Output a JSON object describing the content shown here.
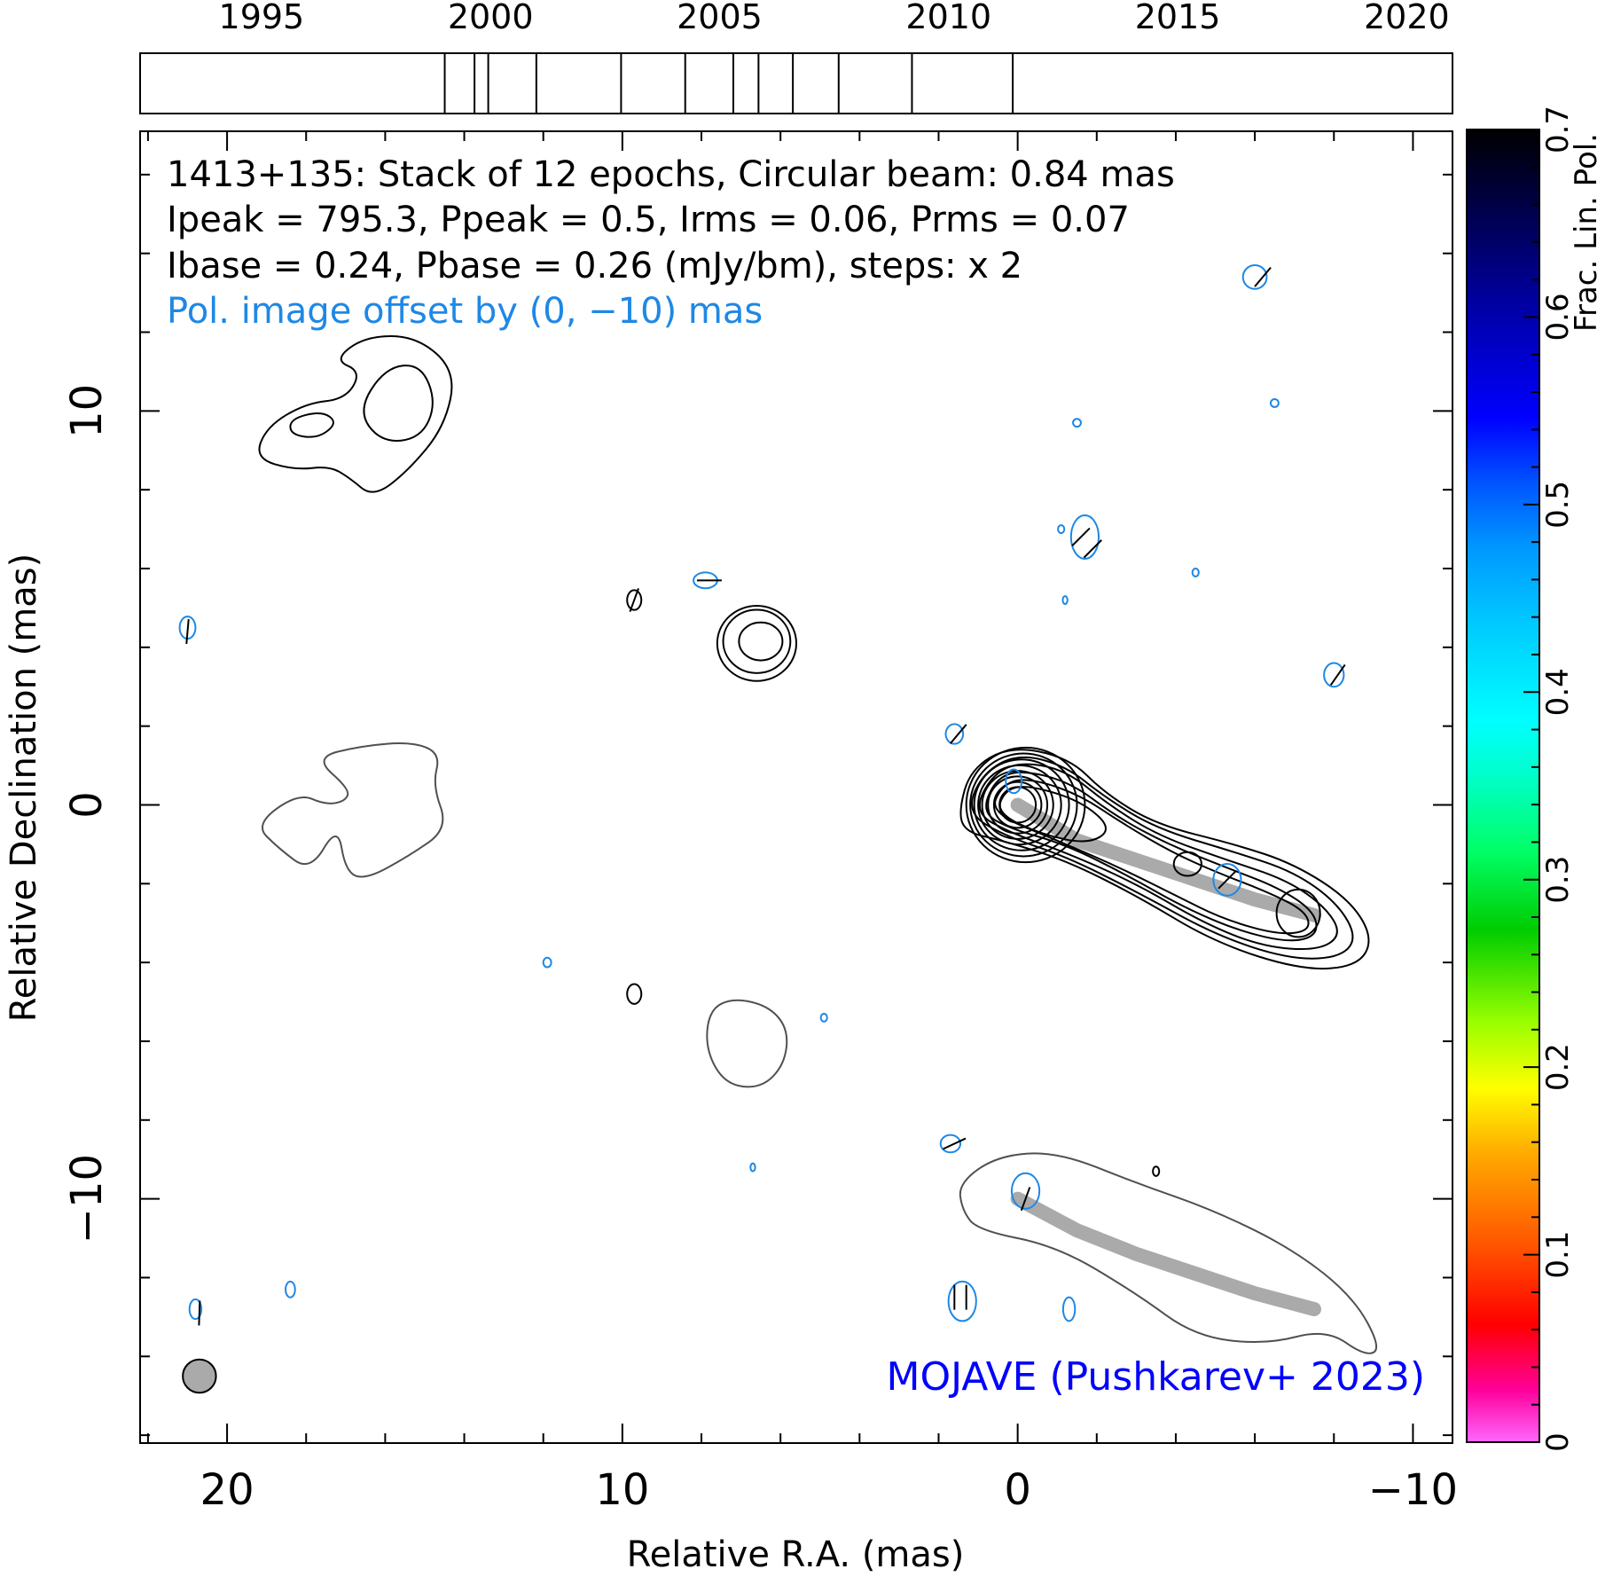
{
  "chart_data": {
    "type": "contour",
    "timeline": {
      "years": [
        1995,
        2000,
        2005,
        2010,
        2015,
        2020
      ],
      "epochs": [
        1999.0,
        1999.65,
        1999.95,
        2001.0,
        2002.85,
        2004.25,
        2005.3,
        2005.85,
        2006.6,
        2007.6,
        2009.2,
        2011.4
      ]
    },
    "info_lines": [
      "1413+135: Stack of 12 epochs, Circular beam: 0.84 mas",
      "Ipeak = 795.3, Ppeak = 0.5, Irms = 0.06, Prms = 0.07",
      "Ibase = 0.24, Pbase = 0.26 (mJy/bm), steps: x 2"
    ],
    "offset_note": "Pol. image offset by (0, −10) mas",
    "credit": "MOJAVE (Pushkarev+ 2023)",
    "xlabel": "Relative R.A. (mas)",
    "ylabel": "Relative Declination (mas)",
    "xlim": [
      22.2,
      -11.0
    ],
    "ylim": [
      -16.2,
      17.1
    ],
    "xticks": [
      20,
      10,
      0,
      -10
    ],
    "xtick_labels": [
      "20",
      "10",
      "0",
      "−10"
    ],
    "yticks": [
      -10,
      0,
      10
    ],
    "ytick_labels": [
      "−10",
      "0",
      "10"
    ],
    "colorbar": {
      "label": "Frac. Lin. Pol.",
      "range": [
        0,
        0.7
      ],
      "ticks": [
        0,
        0.1,
        0.2,
        0.3,
        0.4,
        0.5,
        0.6,
        0.7
      ],
      "tick_labels": [
        "0",
        "0.1",
        "0.2",
        "0.3",
        "0.4",
        "0.5",
        "0.6",
        "0.7"
      ]
    },
    "beam_diameter_mas": 0.84,
    "ridge_line": [
      [
        0.0,
        0.0
      ],
      [
        -1.5,
        -0.9
      ],
      [
        -3.0,
        -1.4
      ],
      [
        -4.5,
        -1.9
      ],
      [
        -6.0,
        -2.4
      ],
      [
        -7.5,
        -2.8
      ]
    ],
    "ridge_line_offset": [
      [
        0.0,
        -10.0
      ],
      [
        -1.5,
        -10.8
      ],
      [
        -3.0,
        -11.4
      ],
      [
        -4.5,
        -11.9
      ],
      [
        -6.0,
        -12.4
      ],
      [
        -7.5,
        -12.8
      ]
    ],
    "core_contours": [
      {
        "cx": -0.2,
        "cy": 0.0,
        "rx": 1.5,
        "ry": 1.45
      },
      {
        "cx": -0.15,
        "cy": 0.0,
        "rx": 1.35,
        "ry": 1.3
      },
      {
        "cx": -0.1,
        "cy": 0.0,
        "rx": 1.2,
        "ry": 1.15
      },
      {
        "cx": -0.05,
        "cy": 0.0,
        "rx": 1.05,
        "ry": 1.0
      },
      {
        "cx": 0.0,
        "cy": 0.0,
        "rx": 0.9,
        "ry": 0.86
      },
      {
        "cx": 0.0,
        "cy": 0.0,
        "rx": 0.75,
        "ry": 0.72
      },
      {
        "cx": 0.0,
        "cy": 0.0,
        "rx": 0.6,
        "ry": 0.58
      },
      {
        "cx": 0.0,
        "cy": 0.0,
        "rx": 0.46,
        "ry": 0.45
      }
    ],
    "jet_contours": [
      [
        [
          1.5,
          -0.2
        ],
        [
          1.2,
          0.9
        ],
        [
          0.2,
          1.5
        ],
        [
          -1.3,
          1.2
        ],
        [
          -2.2,
          0.3
        ],
        [
          -3.5,
          -0.5
        ],
        [
          -5.5,
          -1.0
        ],
        [
          -7.0,
          -1.5
        ],
        [
          -8.4,
          -2.4
        ],
        [
          -9.0,
          -3.4
        ],
        [
          -8.6,
          -4.1
        ],
        [
          -7.2,
          -4.2
        ],
        [
          -5.0,
          -3.5
        ],
        [
          -3.0,
          -2.3
        ],
        [
          -1.2,
          -1.4
        ],
        [
          0.4,
          -0.9
        ],
        [
          1.3,
          -0.7
        ]
      ],
      [
        [
          1.3,
          -0.2
        ],
        [
          0.9,
          0.8
        ],
        [
          0.0,
          1.3
        ],
        [
          -1.2,
          1.0
        ],
        [
          -2.2,
          0.2
        ],
        [
          -3.5,
          -0.6
        ],
        [
          -5.5,
          -1.2
        ],
        [
          -7.0,
          -1.7
        ],
        [
          -8.1,
          -2.5
        ],
        [
          -8.6,
          -3.4
        ],
        [
          -8.1,
          -3.9
        ],
        [
          -6.8,
          -3.9
        ],
        [
          -5.0,
          -3.3
        ],
        [
          -3.0,
          -2.2
        ],
        [
          -1.2,
          -1.3
        ],
        [
          0.3,
          -0.8
        ]
      ],
      [
        [
          1.1,
          -0.2
        ],
        [
          0.7,
          0.7
        ],
        [
          0.0,
          1.1
        ],
        [
          -1.2,
          0.9
        ],
        [
          -2.3,
          0.0
        ],
        [
          -3.6,
          -0.8
        ],
        [
          -5.3,
          -1.4
        ],
        [
          -6.8,
          -1.9
        ],
        [
          -7.8,
          -2.6
        ],
        [
          -8.2,
          -3.3
        ],
        [
          -7.6,
          -3.7
        ],
        [
          -6.2,
          -3.6
        ],
        [
          -4.7,
          -3.0
        ],
        [
          -3.0,
          -2.0
        ],
        [
          -1.2,
          -1.2
        ],
        [
          0.2,
          -0.7
        ]
      ],
      [
        [
          0.9,
          -0.2
        ],
        [
          0.6,
          0.6
        ],
        [
          0.0,
          0.9
        ],
        [
          -1.3,
          0.6
        ],
        [
          -2.5,
          -0.3
        ],
        [
          -3.8,
          -1.0
        ],
        [
          -5.3,
          -1.6
        ],
        [
          -6.6,
          -2.1
        ],
        [
          -7.5,
          -2.7
        ],
        [
          -7.6,
          -3.3
        ],
        [
          -6.9,
          -3.5
        ],
        [
          -5.6,
          -3.2
        ],
        [
          -4.2,
          -2.6
        ],
        [
          -2.8,
          -1.8
        ],
        [
          -1.2,
          -1.0
        ],
        [
          0.2,
          -0.6
        ]
      ],
      [
        [
          0.7,
          -0.2
        ],
        [
          0.4,
          0.5
        ],
        [
          -0.2,
          0.7
        ],
        [
          -1.5,
          0.3
        ],
        [
          -2.7,
          -0.5
        ],
        [
          -3.9,
          -1.2
        ],
        [
          -5.0,
          -1.7
        ],
        [
          -6.3,
          -2.2
        ],
        [
          -7.3,
          -2.7
        ],
        [
          -7.4,
          -3.2
        ],
        [
          -6.6,
          -3.3
        ],
        [
          -5.2,
          -2.9
        ],
        [
          -4.0,
          -2.3
        ],
        [
          -2.6,
          -1.6
        ],
        [
          -1.0,
          -0.9
        ]
      ],
      [
        [
          0.55,
          -0.2
        ],
        [
          0.3,
          0.4
        ],
        [
          -0.3,
          0.5
        ],
        [
          -1.6,
          0.1
        ],
        [
          -2.4,
          -0.6
        ],
        [
          -1.8,
          -1.0
        ],
        [
          -0.6,
          -0.75
        ]
      ]
    ],
    "blobs": [
      {
        "cx": -4.3,
        "cy": -1.5,
        "rx": 0.35,
        "ry": 0.3
      },
      {
        "cx": -7.1,
        "cy": -2.75,
        "rx": 0.55,
        "ry": 0.6
      }
    ],
    "nw_component": [
      [
        [
          19.0,
          9.6
        ],
        [
          18.0,
          10.2
        ],
        [
          17.0,
          10.3
        ],
        [
          16.6,
          11.0
        ],
        [
          17.3,
          11.3
        ],
        [
          16.5,
          11.9
        ],
        [
          15.2,
          11.9
        ],
        [
          14.2,
          11.0
        ],
        [
          14.5,
          9.6
        ],
        [
          15.4,
          8.5
        ],
        [
          16.3,
          7.8
        ],
        [
          16.9,
          8.3
        ],
        [
          17.4,
          8.6
        ],
        [
          18.3,
          8.5
        ],
        [
          19.3,
          8.8
        ]
      ],
      [
        [
          16.0,
          11.1
        ],
        [
          15.1,
          11.2
        ],
        [
          14.7,
          10.2
        ],
        [
          15.1,
          9.3
        ],
        [
          16.1,
          9.2
        ],
        [
          16.7,
          10.0
        ]
      ],
      [
        [
          18.4,
          9.8
        ],
        [
          17.6,
          10.0
        ],
        [
          17.2,
          9.7
        ],
        [
          17.7,
          9.3
        ],
        [
          18.4,
          9.4
        ]
      ]
    ],
    "comp_blob": [
      {
        "cx": 6.6,
        "cy": 4.1,
        "rx": 1.0,
        "ry": 0.95
      },
      {
        "cx": 6.6,
        "cy": 4.15,
        "rx": 0.85,
        "ry": 0.8
      },
      {
        "cx": 6.5,
        "cy": 4.15,
        "rx": 0.55,
        "ry": 0.48
      }
    ],
    "small_islands": [
      {
        "cx": 9.7,
        "cy": 5.2,
        "rx": 0.18,
        "ry": 0.25
      },
      {
        "cx": 9.7,
        "cy": -4.8,
        "rx": 0.18,
        "ry": 0.25
      },
      {
        "cx": -3.5,
        "cy": -9.3,
        "rx": 0.08,
        "ry": 0.12
      }
    ],
    "gray_contours": [
      [
        [
          19.3,
          -0.5
        ],
        [
          18.2,
          0.3
        ],
        [
          17.5,
          0.0
        ],
        [
          17.0,
          0.1
        ],
        [
          16.9,
          0.4
        ],
        [
          17.8,
          1.2
        ],
        [
          16.6,
          1.5
        ],
        [
          15.3,
          1.6
        ],
        [
          14.6,
          1.3
        ],
        [
          14.8,
          0.5
        ],
        [
          14.4,
          -0.6
        ],
        [
          15.4,
          -1.3
        ],
        [
          16.5,
          -1.9
        ],
        [
          17.0,
          -1.7
        ],
        [
          17.2,
          -0.5
        ],
        [
          17.9,
          -1.7
        ],
        [
          18.7,
          -1.1
        ]
      ],
      [
        [
          7.8,
          -5.2
        ],
        [
          7.2,
          -4.9
        ],
        [
          6.3,
          -5.1
        ],
        [
          5.8,
          -5.7
        ],
        [
          5.9,
          -6.6
        ],
        [
          6.5,
          -7.2
        ],
        [
          7.4,
          -7.1
        ],
        [
          7.9,
          -6.2
        ]
      ],
      [
        [
          1.5,
          -9.6
        ],
        [
          0.5,
          -8.9
        ],
        [
          -1.0,
          -8.8
        ],
        [
          -3.0,
          -9.6
        ],
        [
          -5.0,
          -10.3
        ],
        [
          -7.0,
          -11.3
        ],
        [
          -8.5,
          -12.5
        ],
        [
          -9.2,
          -13.8
        ],
        [
          -8.8,
          -14.0
        ],
        [
          -7.8,
          -13.3
        ],
        [
          -6.3,
          -13.7
        ],
        [
          -4.5,
          -13.5
        ],
        [
          -3.0,
          -12.4
        ],
        [
          -1.0,
          -11.2
        ],
        [
          1.0,
          -10.8
        ],
        [
          1.4,
          -10.3
        ]
      ]
    ],
    "pol_contours": [
      {
        "cx": 21.0,
        "cy": 4.5,
        "rx": 0.2,
        "ry": 0.28
      },
      {
        "cx": 7.9,
        "cy": 5.7,
        "rx": 0.3,
        "ry": 0.2
      },
      {
        "cx": -1.7,
        "cy": 6.8,
        "rx": 0.35,
        "ry": 0.55
      },
      {
        "cx": -1.5,
        "cy": 9.7,
        "rx": 0.1,
        "ry": 0.1
      },
      {
        "cx": -6.5,
        "cy": 10.2,
        "rx": 0.1,
        "ry": 0.1
      },
      {
        "cx": -6.0,
        "cy": 13.4,
        "rx": 0.3,
        "ry": 0.3
      },
      {
        "cx": -1.1,
        "cy": 7.0,
        "rx": 0.08,
        "ry": 0.1
      },
      {
        "cx": -4.5,
        "cy": 5.9,
        "rx": 0.08,
        "ry": 0.1
      },
      {
        "cx": -1.2,
        "cy": 5.2,
        "rx": 0.06,
        "ry": 0.1
      },
      {
        "cx": -8.0,
        "cy": 3.3,
        "rx": 0.25,
        "ry": 0.3
      },
      {
        "cx": 1.6,
        "cy": 1.8,
        "rx": 0.22,
        "ry": 0.25
      },
      {
        "cx": 0.1,
        "cy": 0.6,
        "rx": 0.2,
        "ry": 0.3
      },
      {
        "cx": -5.3,
        "cy": -1.9,
        "rx": 0.35,
        "ry": 0.4
      },
      {
        "cx": 11.9,
        "cy": -4.0,
        "rx": 0.1,
        "ry": 0.12
      },
      {
        "cx": 4.9,
        "cy": -5.4,
        "rx": 0.08,
        "ry": 0.1
      },
      {
        "cx": 1.7,
        "cy": -8.6,
        "rx": 0.25,
        "ry": 0.22
      },
      {
        "cx": 6.7,
        "cy": -9.2,
        "rx": 0.06,
        "ry": 0.1
      },
      {
        "cx": -0.2,
        "cy": -9.8,
        "rx": 0.35,
        "ry": 0.45
      },
      {
        "cx": 1.4,
        "cy": -12.6,
        "rx": 0.35,
        "ry": 0.5
      },
      {
        "cx": -1.3,
        "cy": -12.8,
        "rx": 0.15,
        "ry": 0.3
      },
      {
        "cx": 18.4,
        "cy": -12.3,
        "rx": 0.12,
        "ry": 0.2
      },
      {
        "cx": 20.8,
        "cy": -12.8,
        "rx": 0.15,
        "ry": 0.25
      }
    ],
    "evpa_ticks": [
      {
        "x": 20.7,
        "y": -12.9,
        "ang": 88
      },
      {
        "x": 21.0,
        "y": 4.4,
        "ang": 85
      },
      {
        "x": -1.6,
        "y": 6.8,
        "ang": 45
      },
      {
        "x": -1.9,
        "y": 6.5,
        "ang": 45
      },
      {
        "x": -6.2,
        "y": 13.4,
        "ang": 50
      },
      {
        "x": -8.1,
        "y": 3.3,
        "ang": 55
      },
      {
        "x": 1.5,
        "y": 1.8,
        "ang": 50
      },
      {
        "x": -5.3,
        "y": -1.9,
        "ang": 45
      },
      {
        "x": 1.6,
        "y": -8.6,
        "ang": 25
      },
      {
        "x": -0.2,
        "y": -10.0,
        "ang": 70
      },
      {
        "x": 1.3,
        "y": -12.5,
        "ang": 90
      },
      {
        "x": 1.6,
        "y": -12.5,
        "ang": 90
      },
      {
        "x": 9.7,
        "y": 5.2,
        "ang": 70
      },
      {
        "x": 7.8,
        "y": 5.7,
        "ang": 0
      }
    ]
  }
}
